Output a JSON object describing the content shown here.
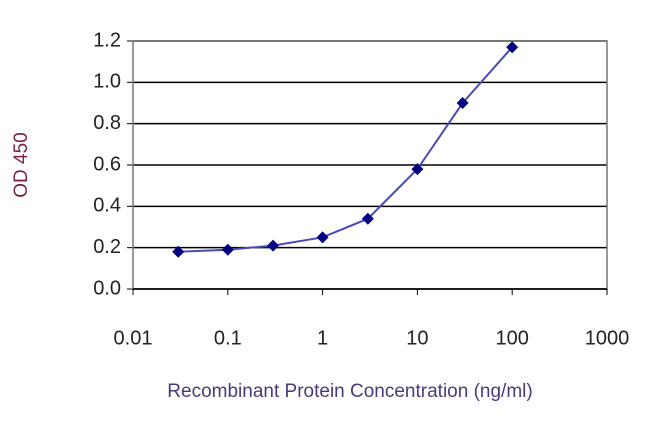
{
  "chart_data": {
    "type": "line",
    "x_label": "Recombinant Protein Concentration (ng/ml)",
    "y_label": "OD 450",
    "xscale": "log",
    "x": [
      0.03,
      0.1,
      0.3,
      1,
      3,
      10,
      30,
      100
    ],
    "series": [
      {
        "values": [
          0.18,
          0.19,
          0.21,
          0.25,
          0.34,
          0.58,
          0.9,
          1.17
        ],
        "color": "#000080",
        "line_color": "#4a4ab8"
      }
    ],
    "xlim": [
      0.01,
      1000
    ],
    "xticks": [
      0.01,
      0.1,
      1,
      10,
      100,
      1000
    ],
    "ylim": [
      0,
      1.2
    ],
    "yticks": [
      {
        "value": 0,
        "label": "0.0"
      },
      0.2,
      0.4,
      0.6,
      0.8,
      {
        "value": 1,
        "label": "1.0"
      },
      1.2
    ],
    "grid": true
  }
}
